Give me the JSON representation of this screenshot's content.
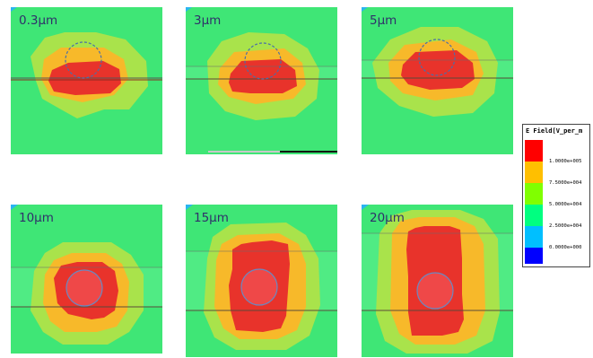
{
  "panels": [
    {
      "label": "0.3μm"
    },
    {
      "label": "3μm"
    },
    {
      "label": "5μm"
    },
    {
      "label": "10μm"
    },
    {
      "label": "15μm"
    },
    {
      "label": "20μm"
    }
  ],
  "legend": {
    "title": "E Field[V_per_m",
    "values": [
      "1.0000e+005",
      "7.5000e+004",
      "5.0000e+004",
      "2.5000e+004",
      "0.0000e+000"
    ],
    "colors": [
      "#ff0000",
      "#ffbf00",
      "#80ff00",
      "#00ff80",
      "#00bfff",
      "#0000ff"
    ]
  },
  "colors": {
    "background": "#3fe676",
    "corner": "#2ab5f0",
    "outer": "#a9e34b",
    "mid": "#f7b92a",
    "core": "#e8332b"
  }
}
